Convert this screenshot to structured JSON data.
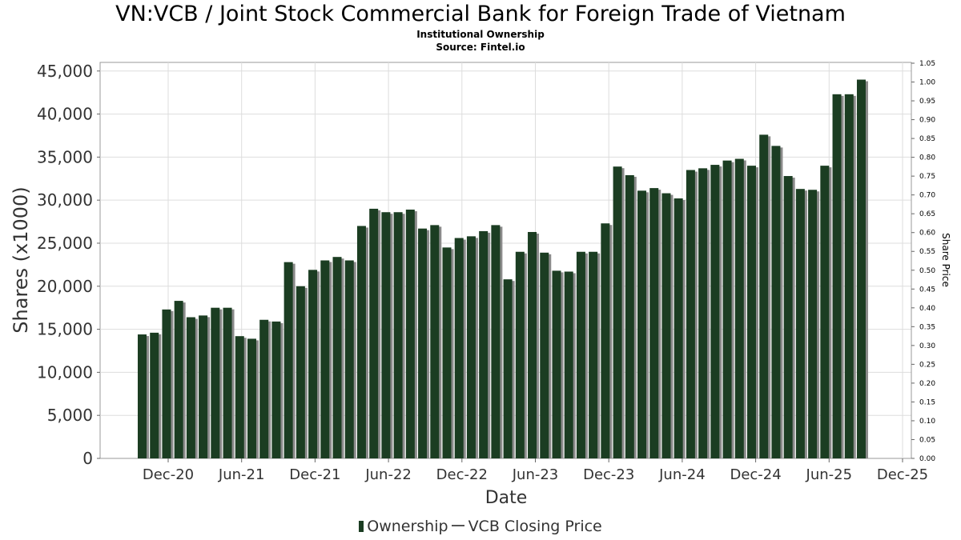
{
  "chart_data": {
    "type": "bar",
    "title": "VN:VCB / Joint Stock Commercial Bank for Foreign Trade of Vietnam",
    "subtitles": [
      "Institutional Ownership",
      "Source: Fintel.io"
    ],
    "xlabel": "Date",
    "ylabel": "Shares (x1000)",
    "y2label": "Share Price",
    "ylim": [
      0,
      46000
    ],
    "y2lim": [
      0,
      1.05
    ],
    "yticks": [
      0,
      5000,
      10000,
      15000,
      20000,
      25000,
      30000,
      35000,
      40000,
      45000
    ],
    "ytick_labels": [
      "0",
      "5,000",
      "10,000",
      "15,000",
      "20,000",
      "25,000",
      "30,000",
      "35,000",
      "40,000",
      "45,000"
    ],
    "y2ticks": [
      "0.00",
      "0.05",
      "0.10",
      "0.15",
      "0.20",
      "0.25",
      "0.30",
      "0.35",
      "0.40",
      "0.45",
      "0.50",
      "0.55",
      "0.60",
      "0.65",
      "0.70",
      "0.75",
      "0.80",
      "0.85",
      "0.90",
      "0.95",
      "1.00",
      "1.05"
    ],
    "xticks": [
      "Dec-20",
      "Jun-21",
      "Dec-21",
      "Jun-22",
      "Dec-22",
      "Jun-23",
      "Dec-23",
      "Jun-24",
      "Dec-24",
      "Jun-25",
      "Dec-25"
    ],
    "grid": true,
    "legend_placement": "bottom",
    "series": [
      {
        "name": "Ownership",
        "color": "#1b3d22",
        "values": [
          14400,
          14600,
          17300,
          18300,
          16400,
          16600,
          17500,
          17500,
          14200,
          13900,
          16100,
          15900,
          22800,
          20000,
          21900,
          23000,
          23400,
          23000,
          27000,
          29000,
          28600,
          28600,
          28900,
          26700,
          27100,
          24500,
          25600,
          25800,
          26400,
          27100,
          20800,
          24000,
          26300,
          23900,
          21800,
          21700,
          24000,
          24000,
          27300,
          33900,
          32900,
          31100,
          31400,
          30800,
          30200,
          33500,
          33700,
          34100,
          34600,
          34800,
          34000,
          37600,
          36300,
          32800,
          31300,
          31200,
          34000,
          42300,
          42300,
          44000
        ]
      },
      {
        "name": "VCB Closing Price",
        "color": "#555555",
        "values": []
      }
    ]
  }
}
